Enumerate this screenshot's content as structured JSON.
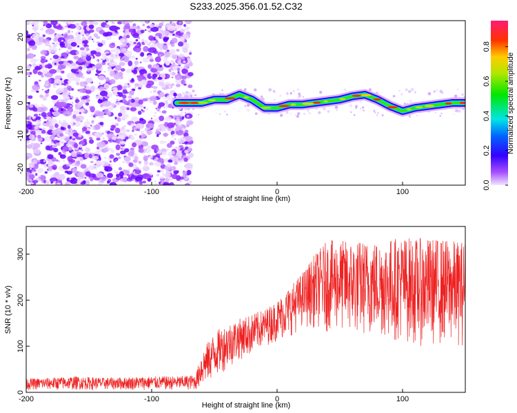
{
  "title": "S233.2025.356.01.52.C32",
  "chart_data": [
    {
      "type": "heatmap",
      "xlabel": "Height of straight line (km)",
      "ylabel": "Frequency (Hz)",
      "xlim": [
        -200,
        150
      ],
      "ylim": [
        -25,
        25
      ],
      "xticks": [
        -200,
        -100,
        0,
        100
      ],
      "yticks": [
        -20,
        -10,
        0,
        10,
        20
      ],
      "colorbar": {
        "label": "Normalized spectral amplitude",
        "range": [
          0,
          0.95
        ],
        "ticks": [
          0.0,
          0.2,
          0.4,
          0.6,
          0.8
        ]
      },
      "noise_region_x": [
        -200,
        -72
      ],
      "signal_ridge": {
        "x": [
          -80,
          -70,
          -60,
          -50,
          -40,
          -30,
          -20,
          -10,
          0,
          10,
          20,
          30,
          40,
          50,
          60,
          70,
          80,
          90,
          100,
          110,
          120,
          130,
          140,
          150
        ],
        "frequency": [
          0,
          0,
          0,
          1,
          1,
          2.5,
          1,
          -1.5,
          -1.5,
          -0.5,
          -0.5,
          0,
          0.5,
          1,
          2,
          2.5,
          1,
          -1,
          -2.5,
          -1.5,
          -1,
          -0.5,
          0,
          0
        ]
      }
    },
    {
      "type": "line",
      "xlabel": "Height of straight line (km)",
      "ylabel": "SNR (10 * v/v)",
      "xlim": [
        -200,
        150
      ],
      "ylim": [
        0,
        360
      ],
      "xticks": [
        -200,
        -100,
        0,
        100
      ],
      "yticks": [
        0,
        100,
        200,
        300
      ],
      "series": [
        {
          "name": "SNR",
          "color": "#ee2222",
          "x": [
            -200,
            -180,
            -160,
            -140,
            -120,
            -100,
            -80,
            -65,
            -60,
            -50,
            -40,
            -30,
            -20,
            -10,
            0,
            10,
            20,
            30,
            40,
            50,
            60,
            70,
            80,
            90,
            100,
            110,
            120,
            130,
            140,
            150
          ],
          "upper": [
            30,
            32,
            35,
            32,
            33,
            35,
            35,
            38,
            90,
            130,
            150,
            160,
            170,
            180,
            200,
            230,
            260,
            300,
            330,
            330,
            330,
            330,
            330,
            335,
            340,
            335,
            335,
            335,
            330,
            330
          ],
          "lower": [
            5,
            5,
            5,
            5,
            5,
            5,
            5,
            5,
            10,
            30,
            50,
            70,
            80,
            100,
            110,
            120,
            140,
            140,
            130,
            130,
            120,
            120,
            120,
            110,
            110,
            100,
            100,
            100,
            100,
            100
          ]
        }
      ]
    }
  ]
}
